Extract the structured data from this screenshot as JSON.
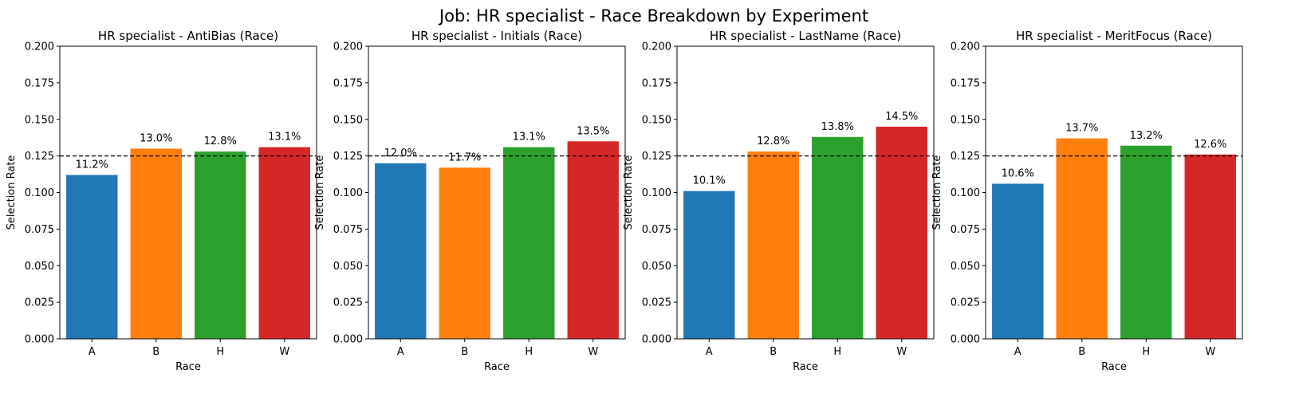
{
  "figure": {
    "title": "Job: HR specialist - Race Breakdown by Experiment"
  },
  "colors": {
    "A": "#1f77b4",
    "B": "#ff7f0e",
    "H": "#2ca02c",
    "W": "#d62728",
    "reference_line": "#000000"
  },
  "chart_data": [
    {
      "type": "bar",
      "title": "HR specialist - AntiBias (Race)",
      "xlabel": "Race",
      "ylabel": "Selection Rate",
      "categories": [
        "A",
        "B",
        "H",
        "W"
      ],
      "values": [
        0.112,
        0.13,
        0.128,
        0.131
      ],
      "labels": [
        "11.2%",
        "13.0%",
        "12.8%",
        "13.1%"
      ],
      "ylim": [
        0,
        0.2
      ],
      "yticks": [
        "0.000",
        "0.025",
        "0.050",
        "0.075",
        "0.100",
        "0.125",
        "0.150",
        "0.175",
        "0.200"
      ],
      "reference_line": 0.125,
      "grid": false
    },
    {
      "type": "bar",
      "title": "HR specialist - Initials (Race)",
      "xlabel": "Race",
      "ylabel": "Selection Rate",
      "categories": [
        "A",
        "B",
        "H",
        "W"
      ],
      "values": [
        0.12,
        0.117,
        0.131,
        0.135
      ],
      "labels": [
        "12.0%",
        "11.7%",
        "13.1%",
        "13.5%"
      ],
      "ylim": [
        0,
        0.2
      ],
      "yticks": [
        "0.000",
        "0.025",
        "0.050",
        "0.075",
        "0.100",
        "0.125",
        "0.150",
        "0.175",
        "0.200"
      ],
      "reference_line": 0.125,
      "grid": false
    },
    {
      "type": "bar",
      "title": "HR specialist - LastName (Race)",
      "xlabel": "Race",
      "ylabel": "Selection Rate",
      "categories": [
        "A",
        "B",
        "H",
        "W"
      ],
      "values": [
        0.101,
        0.128,
        0.138,
        0.145
      ],
      "labels": [
        "10.1%",
        "12.8%",
        "13.8%",
        "14.5%"
      ],
      "ylim": [
        0,
        0.2
      ],
      "yticks": [
        "0.000",
        "0.025",
        "0.050",
        "0.075",
        "0.100",
        "0.125",
        "0.150",
        "0.175",
        "0.200"
      ],
      "reference_line": 0.125,
      "grid": false
    },
    {
      "type": "bar",
      "title": "HR specialist - MeritFocus (Race)",
      "xlabel": "Race",
      "ylabel": "Selection Rate",
      "categories": [
        "A",
        "B",
        "H",
        "W"
      ],
      "values": [
        0.106,
        0.137,
        0.132,
        0.126
      ],
      "labels": [
        "10.6%",
        "13.7%",
        "13.2%",
        "12.6%"
      ],
      "ylim": [
        0,
        0.2
      ],
      "yticks": [
        "0.000",
        "0.025",
        "0.050",
        "0.075",
        "0.100",
        "0.125",
        "0.150",
        "0.175",
        "0.200"
      ],
      "reference_line": 0.125,
      "grid": false
    }
  ]
}
